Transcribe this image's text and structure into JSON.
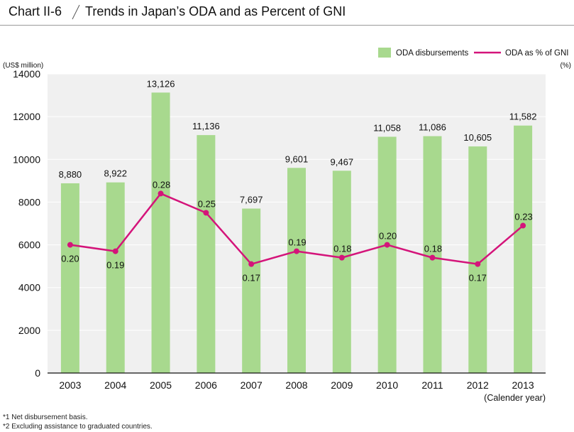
{
  "header": {
    "chart_id": "Chart II-6",
    "title": "Trends in Japan’s ODA and as Percent of GNI"
  },
  "colors": {
    "bar": "#a8d98e",
    "line": "#d4147a",
    "grid": "#ffffff",
    "plot_bg": "#f0f0f0"
  },
  "chart_data": {
    "type": "bar",
    "title": "Trends in Japan’s ODA and as Percent of GNI",
    "categories": [
      "2003",
      "2004",
      "2005",
      "2006",
      "2007",
      "2008",
      "2009",
      "2010",
      "2011",
      "2012",
      "2013"
    ],
    "xlabel": "(Calender year)",
    "ylabel": "(US$ million)",
    "ylabel_right": "(%)",
    "ylim": [
      0,
      14000
    ],
    "yticks": [
      0,
      2000,
      4000,
      6000,
      8000,
      10000,
      12000,
      14000
    ],
    "y2lim": [
      0,
      0.4667
    ],
    "legend": [
      "ODA disbursements",
      "ODA as % of GNI"
    ],
    "legend_position": "top-right",
    "series": [
      {
        "name": "ODA disbursements",
        "type": "bar",
        "values": [
          8880,
          8922,
          13126,
          11136,
          7697,
          9601,
          9467,
          11058,
          11086,
          10605,
          11582
        ],
        "labels": [
          "8,880",
          "8,922",
          "13,126",
          "11,136",
          "7,697",
          "9,601",
          "9,467",
          "11,058",
          "11,086",
          "10,605",
          "11,582"
        ]
      },
      {
        "name": "ODA as % of GNI",
        "type": "line",
        "axis": "right",
        "values": [
          0.2,
          0.19,
          0.28,
          0.25,
          0.17,
          0.19,
          0.18,
          0.2,
          0.18,
          0.17,
          0.23
        ],
        "labels": [
          "0.20",
          "0.19",
          "0.28",
          "0.25",
          "0.17",
          "0.19",
          "0.18",
          "0.20",
          "0.18",
          "0.17",
          "0.23"
        ],
        "label_side": [
          "below",
          "below",
          "above",
          "above",
          "below",
          "above",
          "above",
          "above",
          "above",
          "below",
          "above"
        ]
      }
    ]
  },
  "notes": [
    "*1  Net disbursement basis.",
    "*2  Excluding assistance to graduated countries."
  ]
}
